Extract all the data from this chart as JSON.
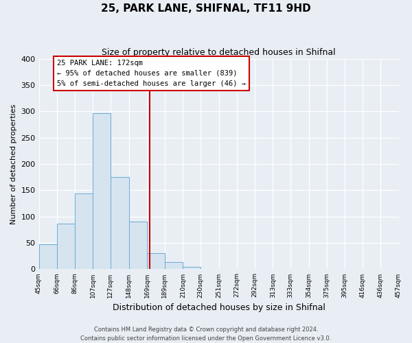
{
  "title": "25, PARK LANE, SHIFNAL, TF11 9HD",
  "subtitle": "Size of property relative to detached houses in Shifnal",
  "xlabel": "Distribution of detached houses by size in Shifnal",
  "ylabel": "Number of detached properties",
  "bar_edges": [
    45,
    66,
    86,
    107,
    127,
    148,
    169,
    189,
    210,
    230,
    251,
    272,
    292,
    313,
    333,
    354,
    375,
    395,
    416,
    436,
    457
  ],
  "bar_heights": [
    47,
    86,
    144,
    296,
    175,
    91,
    31,
    14,
    5,
    0,
    0,
    1,
    0,
    0,
    0,
    0,
    0,
    1,
    0,
    1
  ],
  "bar_color": "#d6e4f0",
  "bar_edgecolor": "#6aaad4",
  "vline_x": 172,
  "vline_color": "#cc0000",
  "ylim": [
    0,
    400
  ],
  "yticks": [
    0,
    50,
    100,
    150,
    200,
    250,
    300,
    350,
    400
  ],
  "annotation_title": "25 PARK LANE: 172sqm",
  "annotation_line1": "← 95% of detached houses are smaller (839)",
  "annotation_line2": "5% of semi-detached houses are larger (46) →",
  "annotation_box_edgecolor": "#cc0000",
  "footer_line1": "Contains HM Land Registry data © Crown copyright and database right 2024.",
  "footer_line2": "Contains public sector information licensed under the Open Government Licence v3.0.",
  "background_color": "#e8eef4",
  "plot_background_color": "#e8eef4",
  "grid_color": "#ffffff",
  "title_fontsize": 11,
  "subtitle_fontsize": 9
}
